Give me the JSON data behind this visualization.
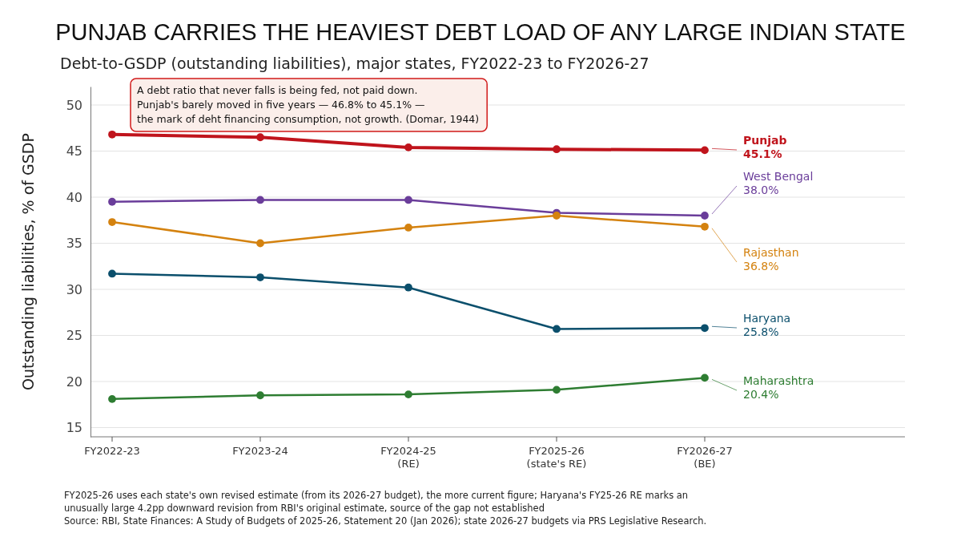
{
  "chart_data": {
    "type": "line",
    "title": "PUNJAB CARRIES THE HEAVIEST DEBT LOAD OF ANY LARGE INDIAN STATE",
    "subtitle": "Debt-to-GSDP (outstanding liabilities), major states, FY2022-23 to FY2026-27",
    "ylabel": "Outstanding liabilities, % of GSDP",
    "categories": [
      "FY2022-23",
      "FY2023-24",
      "FY2024-25\n(RE)",
      "FY2025-26\n(state's RE)",
      "FY2026-27\n(BE)"
    ],
    "ylim": [
      14,
      52
    ],
    "yticks": [
      15,
      20,
      25,
      30,
      35,
      40,
      45,
      50
    ],
    "grid": "y",
    "marker": "circle",
    "line_style": "solid",
    "series": [
      {
        "name": "Punjab",
        "color": "#c0141c",
        "values": [
          46.8,
          46.5,
          45.4,
          45.2,
          45.1
        ],
        "value_labels": [
          null,
          null,
          null,
          null,
          "45.1%"
        ]
      },
      {
        "name": "West Bengal",
        "color": "#6a3d9a",
        "values": [
          39.5,
          39.7,
          39.7,
          38.3,
          38.0
        ],
        "value_labels": [
          null,
          null,
          null,
          null,
          "38.0%"
        ]
      },
      {
        "name": "Rajasthan",
        "color": "#d4820f",
        "values": [
          37.3,
          35.0,
          36.7,
          38.0,
          36.8
        ],
        "value_labels": [
          null,
          null,
          null,
          null,
          "36.8%"
        ]
      },
      {
        "name": "Haryana",
        "color": "#0b4f6c",
        "values": [
          31.7,
          31.3,
          30.2,
          25.7,
          25.8
        ],
        "value_labels": [
          null,
          null,
          null,
          null,
          "25.8%"
        ]
      },
      {
        "name": "Maharashtra",
        "color": "#2e7d32",
        "values": [
          18.1,
          18.5,
          18.6,
          19.1,
          20.4
        ],
        "value_labels": [
          null,
          null,
          null,
          null,
          "20.4%"
        ]
      }
    ],
    "annotations": [
      "A debt ratio that never falls is being fed, not paid down.\nPunjab's barely moved in five years — 46.8% to 45.1% —\nthe mark of deht financing consumption, not growth. (Domar, 1944)",
      "FY2025-26 uses each state's own revised estimate (from its 2026-27 budget), the more current figure; Haryana's FY25-26 RE marks an\nunusually large 4.2pp downward revision from RBI's original estimate, source of the gap not established\nSource: RBI, State Finances: A Study of Budgets of 2025-26, Statement 20 (Jan 2026); state 2026-27 budgets via PRS Legislative Research."
    ]
  }
}
